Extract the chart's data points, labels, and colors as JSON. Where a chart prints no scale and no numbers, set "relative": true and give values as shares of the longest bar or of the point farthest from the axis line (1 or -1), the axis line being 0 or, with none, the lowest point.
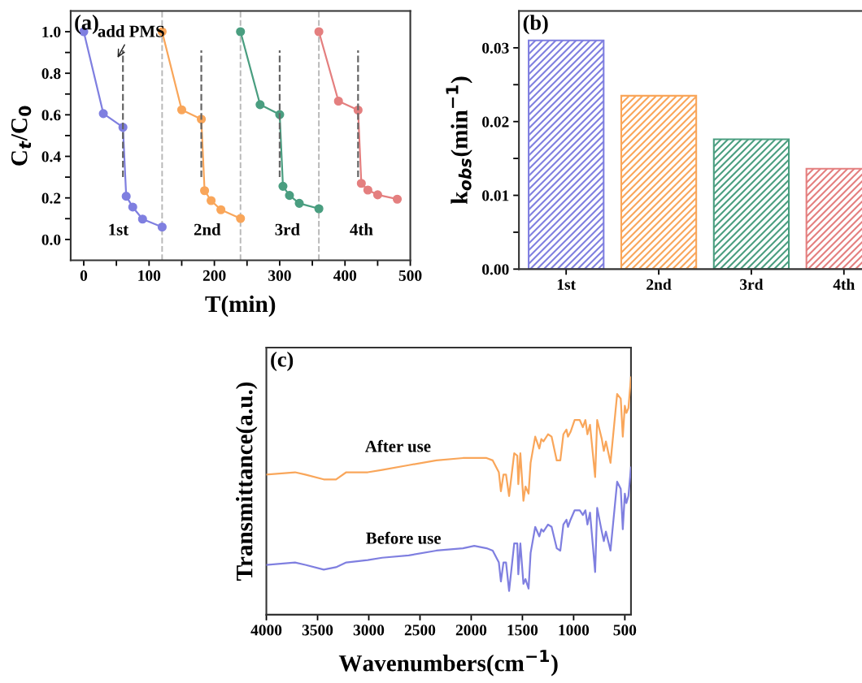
{
  "chart_data": [
    {
      "type": "line",
      "title": "(a)",
      "xlabel": "T(min)",
      "ylabel": "C$_{t}$/C$_{0}$",
      "marker": "circle",
      "line_style": "solid",
      "xlim": [
        -20,
        500
      ],
      "ylim": [
        -0.1,
        1.1
      ],
      "xticks": [
        0,
        {
          "value": 50,
          "label": null
        },
        100,
        {
          "value": 150,
          "label": null
        },
        200,
        {
          "value": 250,
          "label": null
        },
        300,
        {
          "value": 350,
          "label": null
        },
        400,
        {
          "value": 450,
          "label": null
        },
        500
      ],
      "yticks": [
        {
          "value": 0,
          "label": "0.0"
        },
        {
          "value": 0.1,
          "label": null
        },
        0.2,
        {
          "value": 0.3,
          "label": null
        },
        0.4,
        {
          "value": 0.5,
          "label": null
        },
        0.6,
        {
          "value": 0.7,
          "label": null
        },
        0.8,
        {
          "value": 0.9,
          "label": null
        },
        {
          "value": 1,
          "label": "1.0"
        }
      ],
      "series": [
        {
          "color": "#7f7fe0",
          "x": [
            0,
            30,
            60,
            65,
            75,
            90,
            120
          ],
          "values": [
            1.0,
            0.606,
            0.54,
            0.208,
            0.156,
            0.098,
            0.06
          ]
        },
        {
          "color": "#f9a65a",
          "x": [
            120,
            150,
            180,
            185,
            195,
            210,
            240
          ],
          "values": [
            1.0,
            0.624,
            0.579,
            0.235,
            0.187,
            0.143,
            0.101
          ]
        },
        {
          "color": "#4a9e80",
          "x": [
            240,
            270,
            300,
            305,
            315,
            330,
            360
          ],
          "values": [
            1.0,
            0.649,
            0.601,
            0.256,
            0.212,
            0.174,
            0.148
          ]
        },
        {
          "color": "#e47f7f",
          "x": [
            360,
            390,
            420,
            425,
            435,
            450,
            480
          ],
          "values": [
            1.0,
            0.666,
            0.623,
            0.27,
            0.238,
            0.215,
            0.194
          ]
        },
        {
          "color": "#666666",
          "marker": "none",
          "line_style": "dashed",
          "x": [
            60,
            60
          ],
          "values": [
            0.3,
            0.91
          ]
        },
        {
          "color": "#666666",
          "marker": "none",
          "line_style": "dashed",
          "x": [
            180,
            180
          ],
          "values": [
            0.3,
            0.91
          ]
        },
        {
          "color": "#666666",
          "marker": "none",
          "line_style": "dashed",
          "x": [
            300,
            300
          ],
          "values": [
            0.3,
            0.91
          ]
        },
        {
          "color": "#666666",
          "marker": "none",
          "line_style": "dashed",
          "x": [
            420,
            420
          ],
          "values": [
            0.3,
            0.91
          ]
        }
      ],
      "ref_lines": [
        {
          "axis": "x",
          "value": 120,
          "color": "#b8b8b8",
          "line_style": "dashed"
        },
        {
          "axis": "x",
          "value": 240,
          "color": "#b8b8b8",
          "line_style": "dashed"
        },
        {
          "axis": "x",
          "value": 360,
          "color": "#b8b8b8",
          "line_style": "dashed"
        }
      ],
      "annotations": [
        "add PMS",
        "1st",
        "2nd",
        "3rd",
        "4th"
      ]
    },
    {
      "type": "bar",
      "title": "(b)",
      "ylabel": "k$_{obs}$(min$^{−1}$)",
      "categories": [
        "1st",
        "2nd",
        "3rd",
        "4th"
      ],
      "values": [
        0.031,
        0.0235,
        0.0176,
        0.0136
      ],
      "colors": [
        "#7f7fe0",
        "#f9a65a",
        "#4a9e80",
        "#e47f7f"
      ],
      "ylim": [
        0,
        0.035
      ],
      "yticks": [
        {
          "value": 0,
          "label": "0.00"
        },
        {
          "value": 0.005,
          "label": null
        },
        0.01,
        {
          "value": 0.015,
          "label": null
        },
        0.02,
        {
          "value": 0.025,
          "label": null
        },
        0.03
      ]
    },
    {
      "type": "line",
      "title": "(c)",
      "xlabel": "Wavenumbers(cm$^{−1}$)",
      "ylabel": "Transmittance(a.u.)",
      "relative": true,
      "tick_labels": "x",
      "xlim": [
        4000,
        440
      ],
      "xticks": [
        4000,
        3500,
        3000,
        2500,
        2000,
        1500,
        1000,
        500
      ],
      "x": [
        4000,
        3720,
        3620,
        3440,
        3320,
        3220,
        3010,
        2870,
        2610,
        2340,
        2080,
        1970,
        1850,
        1790,
        1730,
        1710,
        1685,
        1660,
        1630,
        1580,
        1550,
        1540,
        1520,
        1490,
        1470,
        1440,
        1420,
        1375,
        1335,
        1315,
        1295,
        1250,
        1215,
        1165,
        1130,
        1100,
        1070,
        1055,
        1030,
        990,
        940,
        910,
        885,
        865,
        840,
        790,
        770,
        725,
        705,
        685,
        640,
        575,
        540,
        520,
        500,
        485,
        465,
        440
      ],
      "series": [
        {
          "color": "#f9a65a",
          "values": [
            0.59,
            0.6,
            0.59,
            0.57,
            0.57,
            0.6,
            0.6,
            0.61,
            0.63,
            0.65,
            0.66,
            0.66,
            0.66,
            0.65,
            0.6,
            0.52,
            0.59,
            0.59,
            0.5,
            0.68,
            0.67,
            0.55,
            0.68,
            0.48,
            0.54,
            0.51,
            0.64,
            0.75,
            0.7,
            0.74,
            0.73,
            0.76,
            0.75,
            0.65,
            0.65,
            0.76,
            0.78,
            0.75,
            0.77,
            0.82,
            0.82,
            0.79,
            0.82,
            0.76,
            0.8,
            0.58,
            0.82,
            0.74,
            0.69,
            0.73,
            0.64,
            0.93,
            0.91,
            0.75,
            0.88,
            0.85,
            0.87,
            1.0
          ]
        },
        {
          "color": "#7f7fe0",
          "values": [
            0.21,
            0.22,
            0.21,
            0.19,
            0.2,
            0.22,
            0.23,
            0.24,
            0.25,
            0.27,
            0.28,
            0.29,
            0.28,
            0.27,
            0.22,
            0.14,
            0.22,
            0.22,
            0.1,
            0.3,
            0.3,
            0.17,
            0.3,
            0.13,
            0.15,
            0.11,
            0.26,
            0.37,
            0.33,
            0.36,
            0.35,
            0.38,
            0.37,
            0.28,
            0.27,
            0.38,
            0.4,
            0.37,
            0.4,
            0.44,
            0.44,
            0.42,
            0.44,
            0.38,
            0.43,
            0.18,
            0.45,
            0.35,
            0.31,
            0.35,
            0.27,
            0.56,
            0.53,
            0.36,
            0.51,
            0.47,
            0.5,
            0.62
          ]
        }
      ],
      "annotations": [
        "After use",
        "Before use"
      ]
    }
  ]
}
